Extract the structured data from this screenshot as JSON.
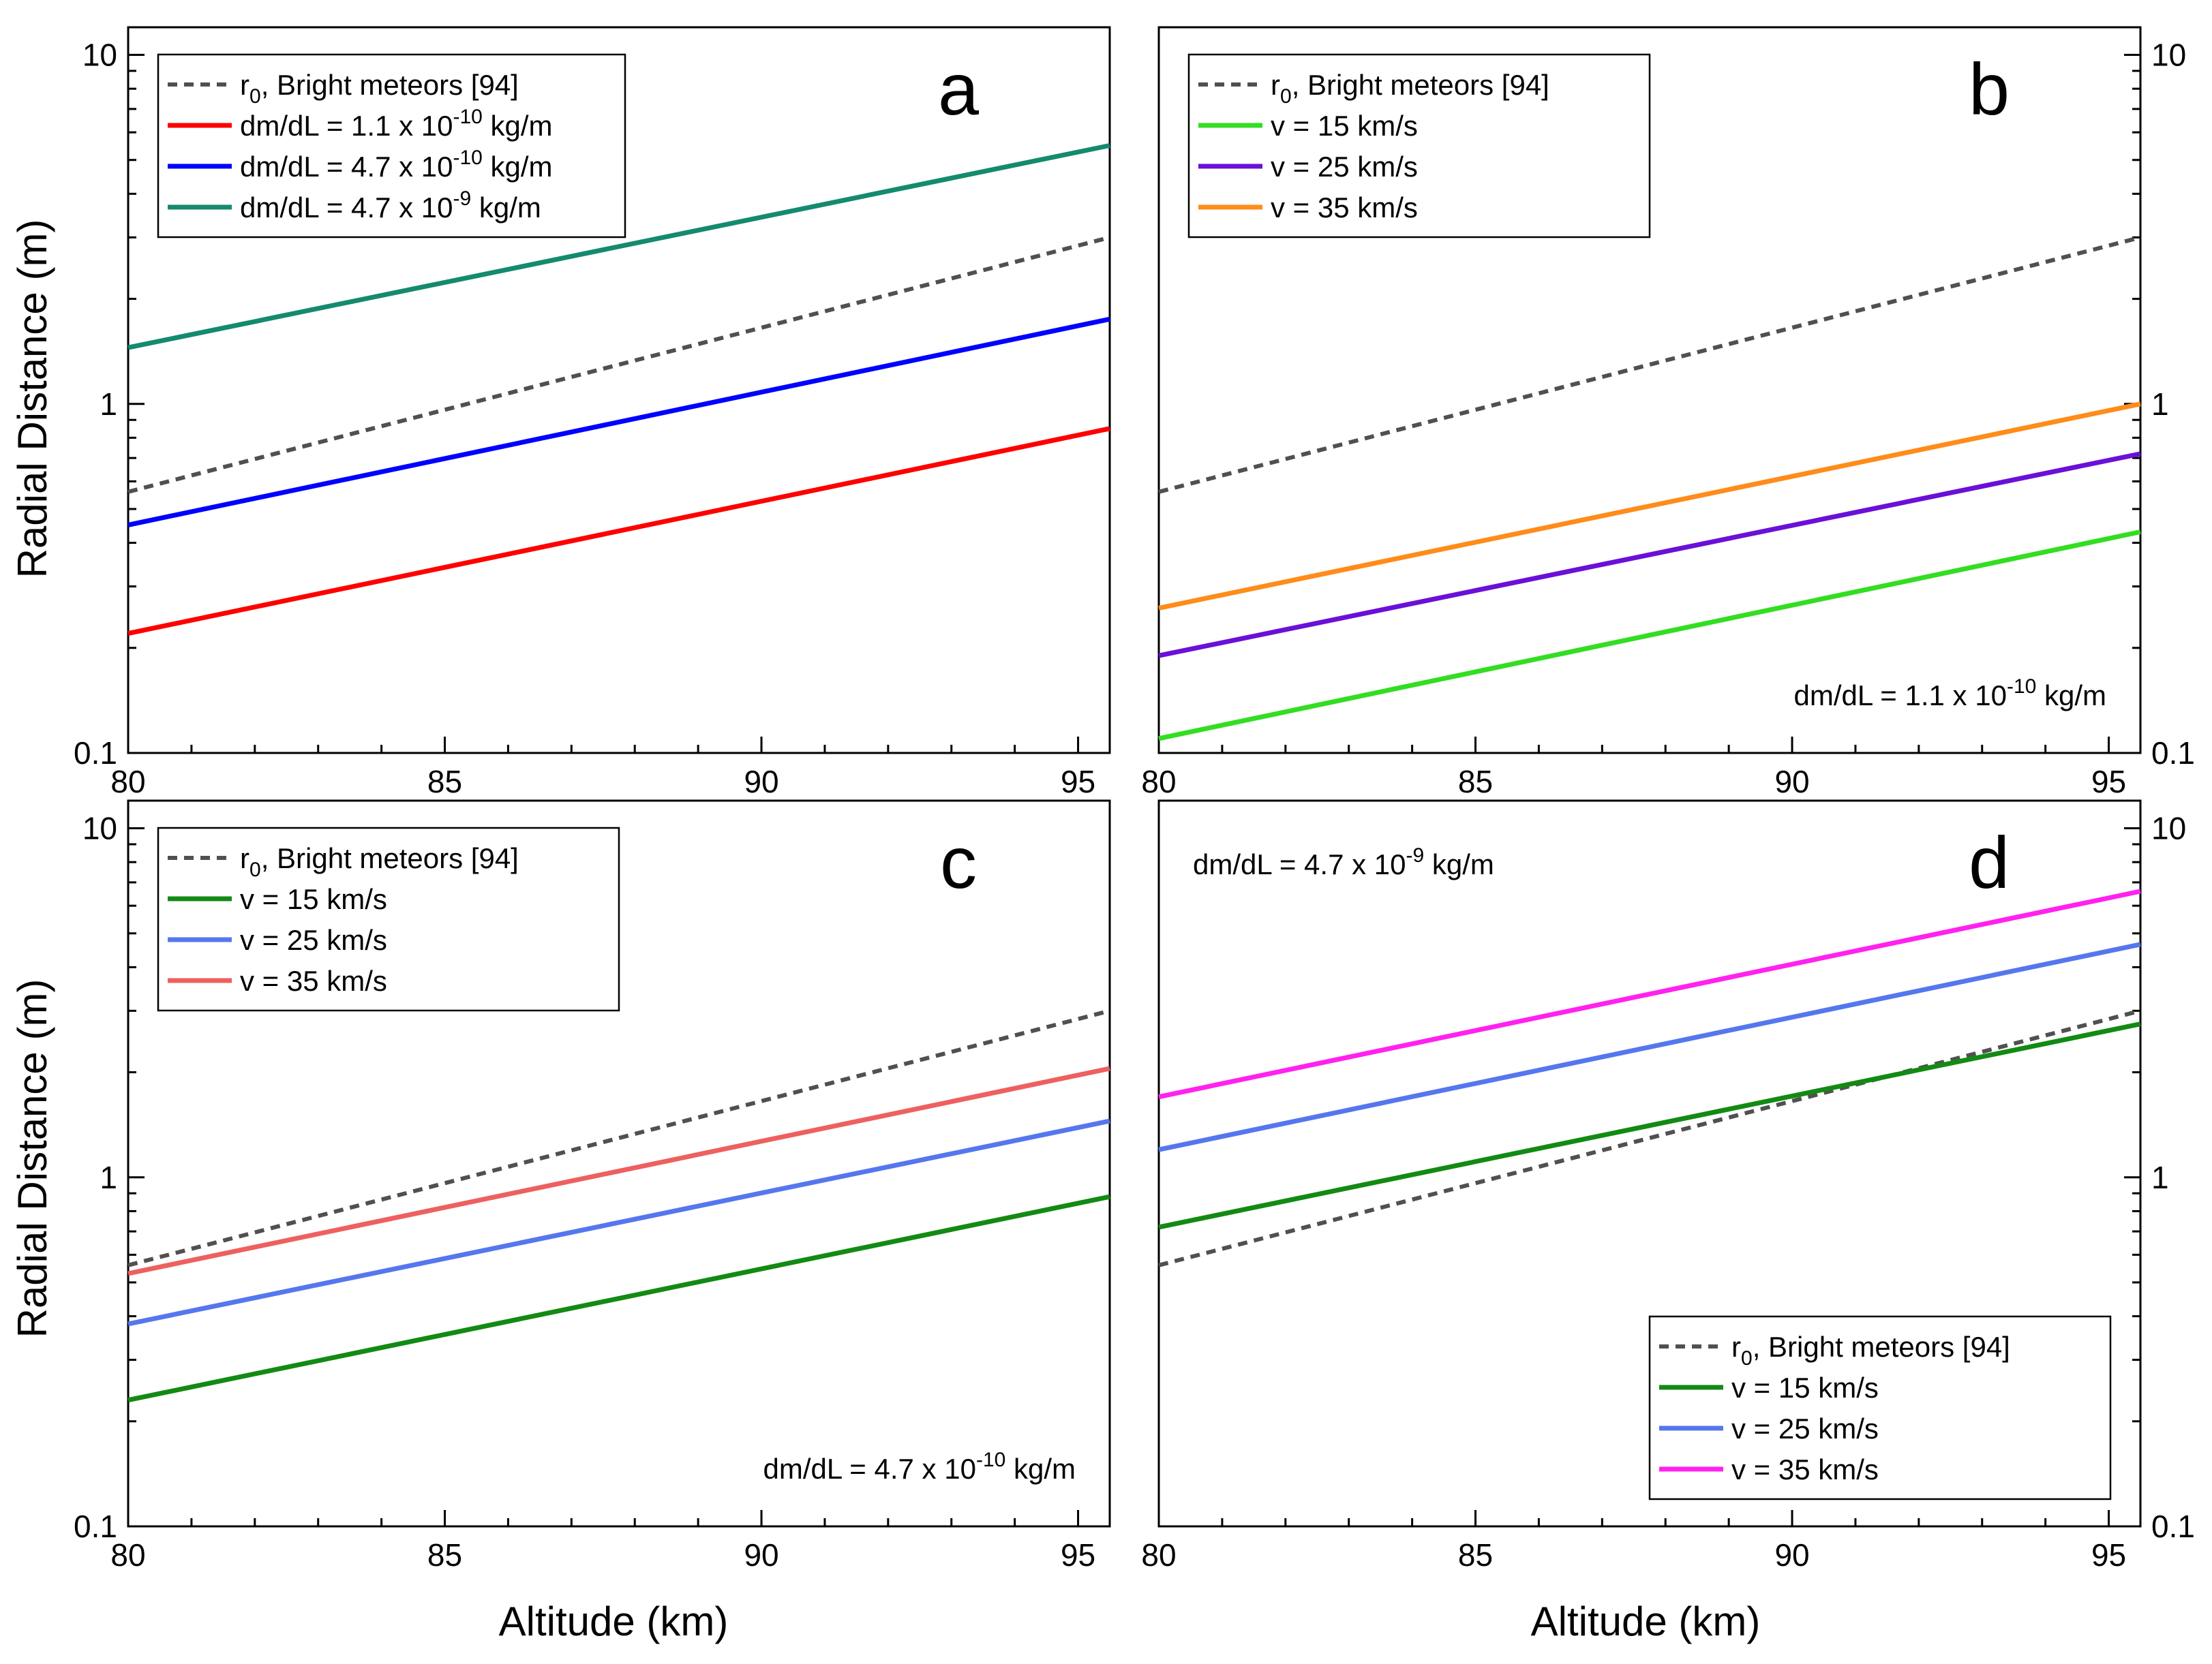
{
  "figure": {
    "xlabel": "Altitude (km)",
    "ylabel": "Radial Distance (m)"
  },
  "chart_data": [
    {
      "panel": "a",
      "type": "line",
      "xlabel": "Altitude (km)",
      "ylabel": "Radial Distance (m)",
      "xlim": [
        80,
        95.5
      ],
      "ylim": [
        0.1,
        12
      ],
      "yscale": "log",
      "x_ticks": [
        80,
        85,
        90,
        95
      ],
      "y_ticks": [
        0.1,
        1,
        10
      ],
      "y_tick_labels": [
        "0.1",
        "1",
        "10"
      ],
      "y_axis_side": "left",
      "legend": {
        "placement": "top-left"
      },
      "annotation": null,
      "series": [
        {
          "name": "r0, Bright meteors [94]",
          "label_base": "r",
          "label_sub": "0",
          "label_rest": ", Bright meteors [94]",
          "color": "#505050",
          "dash": true,
          "x": [
            80,
            95.5
          ],
          "y": [
            0.56,
            3.0
          ]
        },
        {
          "name": "dm/dL = 1.1 x 10^-10 kg/m",
          "label_base": "dm/dL = 1.1 x 10",
          "label_sup": "-10",
          "label_rest": " kg/m",
          "color": "#ff0000",
          "dash": false,
          "x": [
            80,
            95.5
          ],
          "y": [
            0.22,
            0.85
          ]
        },
        {
          "name": "dm/dL = 4.7 x 10^-10 kg/m",
          "label_base": "dm/dL = 4.7 x 10",
          "label_sup": "-10",
          "label_rest": " kg/m",
          "color": "#0000ff",
          "dash": false,
          "x": [
            80,
            95.5
          ],
          "y": [
            0.45,
            1.75
          ]
        },
        {
          "name": "dm/dL = 4.7 x 10^-9 kg/m",
          "label_base": "dm/dL = 4.7 x 10",
          "label_sup": "-9",
          "label_rest": " kg/m",
          "color": "#148a6e",
          "dash": false,
          "x": [
            80,
            95.5
          ],
          "y": [
            1.45,
            5.5
          ]
        }
      ]
    },
    {
      "panel": "b",
      "type": "line",
      "xlabel": "",
      "ylabel": "",
      "xlim": [
        80,
        95.5
      ],
      "ylim": [
        0.1,
        12
      ],
      "yscale": "log",
      "x_ticks": [
        80,
        85,
        90,
        95
      ],
      "y_ticks": [
        0.1,
        1,
        10
      ],
      "y_tick_labels": [
        "0.1",
        "1",
        "10"
      ],
      "y_axis_side": "right",
      "legend": {
        "placement": "top-left"
      },
      "annotation": {
        "placement": "bottom-right",
        "base": "dm/dL = 1.1 x 10",
        "sup": "-10",
        "rest": " kg/m"
      },
      "series": [
        {
          "name": "r0, Bright meteors [94]",
          "label_base": "r",
          "label_sub": "0",
          "label_rest": ", Bright meteors [94]",
          "color": "#505050",
          "dash": true,
          "x": [
            80,
            95.5
          ],
          "y": [
            0.56,
            3.0
          ]
        },
        {
          "name": "v = 15 km/s",
          "label_base": "v = 15 km/s",
          "color": "#33dd22",
          "dash": false,
          "x": [
            80,
            95.5
          ],
          "y": [
            0.11,
            0.43
          ]
        },
        {
          "name": "v = 25 km/s",
          "label_base": "v = 25 km/s",
          "color": "#6a10d8",
          "dash": false,
          "x": [
            80,
            95.5
          ],
          "y": [
            0.19,
            0.72
          ]
        },
        {
          "name": "v = 35 km/s",
          "label_base": "v = 35 km/s",
          "color": "#ff8c1a",
          "dash": false,
          "x": [
            80,
            95.5
          ],
          "y": [
            0.26,
            1.0
          ]
        }
      ]
    },
    {
      "panel": "c",
      "type": "line",
      "xlabel": "Altitude (km)",
      "ylabel": "Radial Distance (m)",
      "xlim": [
        80,
        95.5
      ],
      "ylim": [
        0.1,
        12
      ],
      "yscale": "log",
      "x_ticks": [
        80,
        85,
        90,
        95
      ],
      "y_ticks": [
        0.1,
        1,
        10
      ],
      "y_tick_labels": [
        "0.1",
        "1",
        "10"
      ],
      "y_axis_side": "left",
      "legend": {
        "placement": "top-left"
      },
      "annotation": {
        "placement": "bottom-right",
        "base": "dm/dL = 4.7 x 10",
        "sup": "-10",
        "rest": " kg/m"
      },
      "series": [
        {
          "name": "r0, Bright meteors [94]",
          "label_base": "r",
          "label_sub": "0",
          "label_rest": ", Bright meteors [94]",
          "color": "#505050",
          "dash": true,
          "x": [
            80,
            95.5
          ],
          "y": [
            0.56,
            3.0
          ]
        },
        {
          "name": "v = 15 km/s",
          "label_base": "v = 15 km/s",
          "color": "#138a13",
          "dash": false,
          "x": [
            80,
            95.5
          ],
          "y": [
            0.23,
            0.88
          ]
        },
        {
          "name": "v = 25 km/s",
          "label_base": "v = 25 km/s",
          "color": "#5577ee",
          "dash": false,
          "x": [
            80,
            95.5
          ],
          "y": [
            0.38,
            1.45
          ]
        },
        {
          "name": "v = 35 km/s",
          "label_base": "v = 35 km/s",
          "color": "#ee6060",
          "dash": false,
          "x": [
            80,
            95.5
          ],
          "y": [
            0.53,
            2.05
          ]
        }
      ]
    },
    {
      "panel": "d",
      "type": "line",
      "xlabel": "Altitude (km)",
      "ylabel": "",
      "xlim": [
        80,
        95.5
      ],
      "ylim": [
        0.1,
        12
      ],
      "yscale": "log",
      "x_ticks": [
        80,
        85,
        90,
        95
      ],
      "y_ticks": [
        0.1,
        1,
        10
      ],
      "y_tick_labels": [
        "0.1",
        "1",
        "10"
      ],
      "y_axis_side": "right",
      "legend": {
        "placement": "bottom-right"
      },
      "annotation": {
        "placement": "top-left",
        "base": "dm/dL = 4.7 x 10",
        "sup": "-9",
        "rest": " kg/m"
      },
      "series": [
        {
          "name": "r0, Bright meteors [94]",
          "label_base": "r",
          "label_sub": "0",
          "label_rest": ", Bright meteors [94]",
          "color": "#505050",
          "dash": true,
          "x": [
            80,
            95.5
          ],
          "y": [
            0.56,
            3.0
          ]
        },
        {
          "name": "v = 15 km/s",
          "label_base": "v = 15 km/s",
          "color": "#138a13",
          "dash": false,
          "x": [
            80,
            95.5
          ],
          "y": [
            0.72,
            2.75
          ]
        },
        {
          "name": "v = 25 km/s",
          "label_base": "v = 25 km/s",
          "color": "#5577ee",
          "dash": false,
          "x": [
            80,
            95.5
          ],
          "y": [
            1.2,
            4.65
          ]
        },
        {
          "name": "v = 35 km/s",
          "label_base": "v = 35 km/s",
          "color": "#ff22ee",
          "dash": false,
          "x": [
            80,
            95.5
          ],
          "y": [
            1.7,
            6.6
          ]
        }
      ]
    }
  ]
}
